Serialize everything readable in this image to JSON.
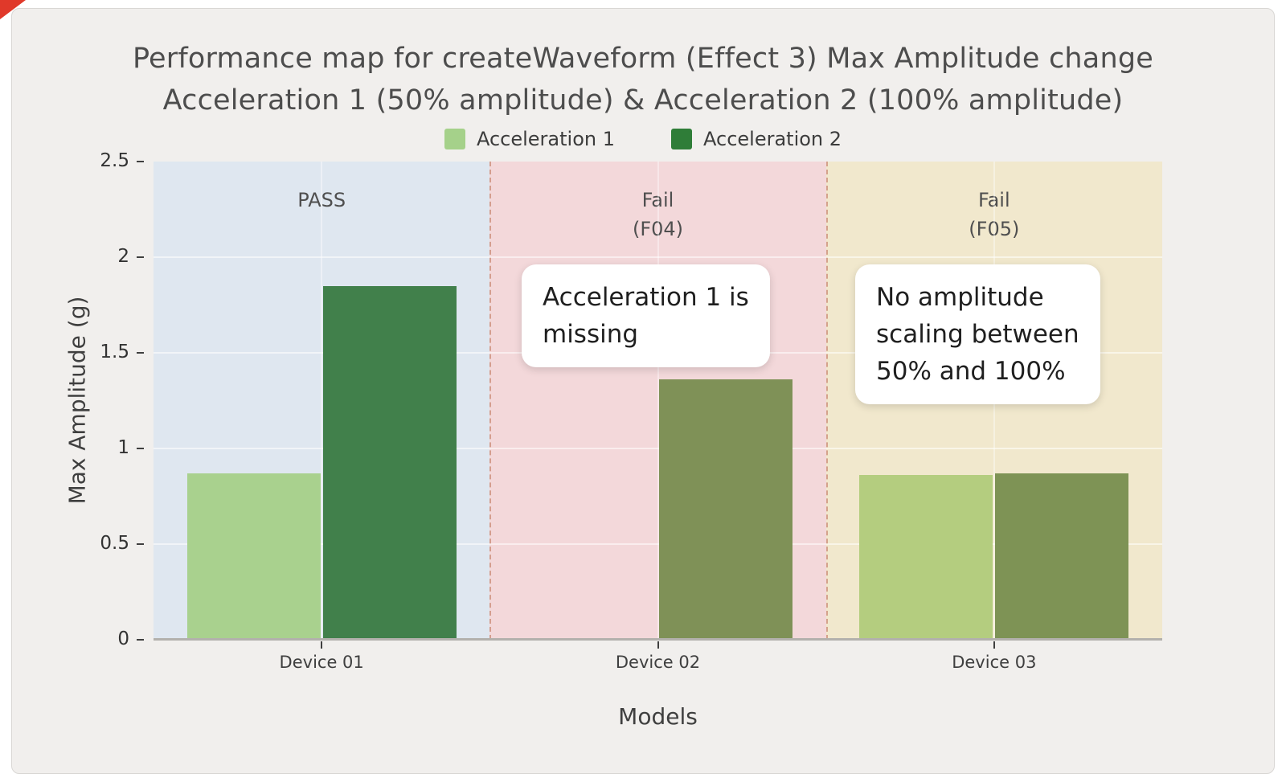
{
  "page": {
    "background": "#ffffff",
    "card_background": "#f1efed",
    "corner_marker_color": "#e0392a"
  },
  "chart_data": {
    "type": "bar",
    "title": "Performance map for createWaveform (Effect 3) Max Amplitude change",
    "subtitle": "Acceleration 1 (50% amplitude) & Acceleration 2 (100% amplitude)",
    "xlabel": "Models",
    "ylabel": "Max Amplitude (g)",
    "ylim": [
      0,
      2.5
    ],
    "yticks": [
      0,
      0.5,
      1,
      1.5,
      2,
      2.5
    ],
    "grid": true,
    "legend_position": "top-center",
    "categories": [
      "Device 01",
      "Device 02",
      "Device 03"
    ],
    "series": [
      {
        "name": "Acceleration 1",
        "legend_color": "#a5d18a",
        "bar_colors": [
          "#a9d18e",
          null,
          "#b4cd7f"
        ],
        "values": [
          0.87,
          null,
          0.86
        ]
      },
      {
        "name": "Acceleration 2",
        "legend_color": "#2f7d38",
        "bar_colors": [
          "#41804b",
          "#7f9157",
          "#7e9355"
        ],
        "values": [
          1.85,
          1.36,
          0.87
        ]
      }
    ],
    "regions": [
      {
        "label_lines": [
          "PASS"
        ],
        "color": "#dfe7f0"
      },
      {
        "label_lines": [
          "Fail",
          "(F04)"
        ],
        "color": "#f3d8da"
      },
      {
        "label_lines": [
          "Fail",
          "(F05)"
        ],
        "color": "#f1e8cd"
      }
    ],
    "annotations": [
      {
        "lines": [
          "Acceleration 1 is",
          "missing"
        ]
      },
      {
        "lines": [
          "No amplitude",
          "scaling between",
          "50% and 100%"
        ]
      }
    ]
  }
}
